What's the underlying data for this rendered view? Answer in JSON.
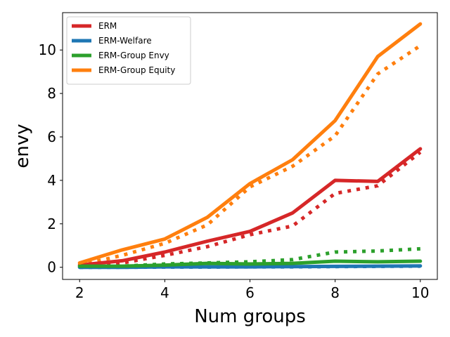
{
  "chart_data": {
    "type": "line",
    "xlabel": "Num groups",
    "ylabel": "envy",
    "xlim": [
      1.6,
      10.4
    ],
    "ylim": [
      -0.56,
      11.72
    ],
    "xticks": [
      2,
      4,
      6,
      8,
      10
    ],
    "yticks": [
      0,
      2,
      4,
      6,
      8,
      10
    ],
    "grid": false,
    "legend_position": "top-left",
    "x": [
      2,
      3,
      4,
      5,
      6,
      7,
      8,
      9,
      10
    ],
    "series": [
      {
        "name": "ERM",
        "color": "#d62728",
        "style": "solid",
        "values": [
          0.1,
          0.3,
          0.7,
          1.2,
          1.65,
          2.5,
          4.0,
          3.95,
          5.45
        ]
      },
      {
        "name": "ERM-Welfare",
        "color": "#1f77b4",
        "style": "solid",
        "values": [
          0.0,
          0.0,
          0.02,
          0.02,
          0.02,
          0.03,
          0.04,
          0.05,
          0.06
        ]
      },
      {
        "name": "ERM-Group Envy",
        "color": "#2ca02c",
        "style": "solid",
        "values": [
          0.05,
          0.05,
          0.1,
          0.18,
          0.15,
          0.18,
          0.28,
          0.25,
          0.28
        ]
      },
      {
        "name": "ERM-Group Equity",
        "color": "#ff7f0e",
        "style": "solid",
        "values": [
          0.2,
          0.8,
          1.3,
          2.3,
          3.85,
          4.95,
          6.75,
          9.7,
          11.2
        ]
      },
      {
        "name": "",
        "color": "#d62728",
        "style": "dotted",
        "values": [
          0.05,
          0.2,
          0.55,
          0.95,
          1.5,
          1.9,
          3.4,
          3.75,
          5.3
        ]
      },
      {
        "name": "",
        "color": "#1f77b4",
        "style": "dotted",
        "values": [
          0.0,
          0.0,
          0.01,
          0.01,
          0.02,
          0.02,
          0.03,
          0.04,
          0.05
        ]
      },
      {
        "name": "",
        "color": "#2ca02c",
        "style": "dotted",
        "values": [
          0.03,
          0.05,
          0.15,
          0.2,
          0.25,
          0.35,
          0.7,
          0.75,
          0.85
        ]
      },
      {
        "name": "",
        "color": "#ff7f0e",
        "style": "dotted",
        "values": [
          0.1,
          0.55,
          1.1,
          1.95,
          3.7,
          4.65,
          6.05,
          8.9,
          10.2
        ]
      }
    ]
  }
}
